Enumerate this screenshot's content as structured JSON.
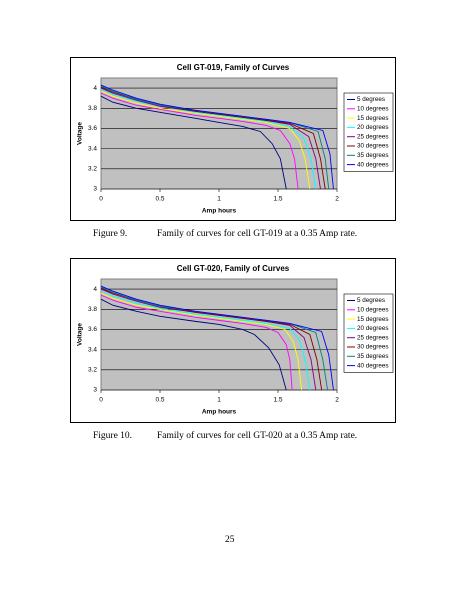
{
  "chart_data": [
    {
      "type": "line",
      "title": "Cell GT-019, Family of Curves",
      "xlabel": "Amp hours",
      "ylabel": "Voltage",
      "xlim": [
        0,
        2
      ],
      "xticks": [
        0,
        0.5,
        1,
        1.5,
        2
      ],
      "ylim": [
        3,
        4.1
      ],
      "yticks": [
        3,
        3.2,
        3.4,
        3.6,
        3.8,
        4
      ],
      "grid": true,
      "legend": "right",
      "series": [
        {
          "name": "5 degrees",
          "color": "#000080",
          "x": [
            0,
            0.1,
            0.3,
            0.5,
            0.8,
            1.0,
            1.2,
            1.35,
            1.45,
            1.52,
            1.57
          ],
          "values": [
            3.92,
            3.86,
            3.8,
            3.76,
            3.7,
            3.66,
            3.62,
            3.57,
            3.45,
            3.3,
            3.0
          ]
        },
        {
          "name": "10 degrees",
          "color": "#ff00ff",
          "x": [
            0,
            0.1,
            0.3,
            0.5,
            0.8,
            1.0,
            1.2,
            1.4,
            1.52,
            1.6,
            1.64,
            1.67
          ],
          "values": [
            3.95,
            3.9,
            3.83,
            3.79,
            3.73,
            3.7,
            3.67,
            3.63,
            3.58,
            3.45,
            3.3,
            3.0
          ]
        },
        {
          "name": "15 degrees",
          "color": "#ffff00",
          "x": [
            0,
            0.1,
            0.3,
            0.5,
            0.8,
            1.0,
            1.2,
            1.4,
            1.6,
            1.68,
            1.73,
            1.77
          ],
          "values": [
            3.97,
            3.92,
            3.85,
            3.8,
            3.75,
            3.72,
            3.69,
            3.66,
            3.6,
            3.48,
            3.3,
            3.0
          ]
        },
        {
          "name": "20 degrees",
          "color": "#00ffff",
          "x": [
            0,
            0.1,
            0.3,
            0.5,
            0.8,
            1.0,
            1.2,
            1.4,
            1.6,
            1.72,
            1.78,
            1.82
          ],
          "values": [
            3.99,
            3.94,
            3.87,
            3.82,
            3.76,
            3.73,
            3.7,
            3.67,
            3.62,
            3.5,
            3.3,
            3.0
          ]
        },
        {
          "name": "25 degrees",
          "color": "#800080",
          "x": [
            0,
            0.1,
            0.3,
            0.5,
            0.8,
            1.0,
            1.2,
            1.4,
            1.6,
            1.76,
            1.82,
            1.86
          ],
          "values": [
            4.0,
            3.95,
            3.88,
            3.82,
            3.77,
            3.74,
            3.71,
            3.68,
            3.64,
            3.52,
            3.3,
            3.0
          ]
        },
        {
          "name": "30 degrees",
          "color": "#800000",
          "x": [
            0,
            0.1,
            0.3,
            0.5,
            0.8,
            1.0,
            1.2,
            1.4,
            1.6,
            1.8,
            1.86,
            1.9
          ],
          "values": [
            4.01,
            3.96,
            3.89,
            3.83,
            3.77,
            3.74,
            3.71,
            3.68,
            3.65,
            3.55,
            3.3,
            3.0
          ]
        },
        {
          "name": "35 degrees",
          "color": "#008080",
          "x": [
            0,
            0.1,
            0.3,
            0.5,
            0.8,
            1.0,
            1.2,
            1.4,
            1.6,
            1.84,
            1.9,
            1.93
          ],
          "values": [
            4.02,
            3.97,
            3.89,
            3.83,
            3.78,
            3.75,
            3.72,
            3.69,
            3.66,
            3.57,
            3.3,
            3.0
          ]
        },
        {
          "name": "40 degrees",
          "color": "#0000ff",
          "x": [
            0,
            0.1,
            0.3,
            0.5,
            0.8,
            1.0,
            1.2,
            1.4,
            1.6,
            1.88,
            1.94,
            1.97
          ],
          "values": [
            4.03,
            3.98,
            3.9,
            3.84,
            3.78,
            3.75,
            3.72,
            3.69,
            3.66,
            3.58,
            3.35,
            3.0
          ]
        }
      ]
    },
    {
      "type": "line",
      "title": "Cell GT-020, Family of Curves",
      "xlabel": "Amp hours",
      "ylabel": "Voltage",
      "xlim": [
        0,
        2
      ],
      "xticks": [
        0,
        0.5,
        1,
        1.5,
        2
      ],
      "ylim": [
        3,
        4.1
      ],
      "yticks": [
        3,
        3.2,
        3.4,
        3.6,
        3.8,
        4
      ],
      "grid": true,
      "legend": "right",
      "series": [
        {
          "name": "5 degrees",
          "color": "#000080",
          "x": [
            0,
            0.1,
            0.3,
            0.5,
            0.8,
            1.0,
            1.2,
            1.3,
            1.42,
            1.51,
            1.57
          ],
          "values": [
            3.9,
            3.84,
            3.78,
            3.73,
            3.68,
            3.65,
            3.6,
            3.55,
            3.42,
            3.25,
            3.0
          ]
        },
        {
          "name": "10 degrees",
          "color": "#ff00ff",
          "x": [
            0,
            0.1,
            0.3,
            0.5,
            0.8,
            1.0,
            1.2,
            1.4,
            1.5,
            1.57,
            1.6,
            1.62
          ],
          "values": [
            3.94,
            3.89,
            3.82,
            3.78,
            3.72,
            3.69,
            3.66,
            3.62,
            3.57,
            3.45,
            3.3,
            3.0
          ]
        },
        {
          "name": "15 degrees",
          "color": "#ffff00",
          "x": [
            0,
            0.1,
            0.3,
            0.5,
            0.8,
            1.0,
            1.2,
            1.4,
            1.56,
            1.63,
            1.67,
            1.7
          ],
          "values": [
            3.96,
            3.91,
            3.84,
            3.8,
            3.74,
            3.71,
            3.68,
            3.65,
            3.6,
            3.48,
            3.3,
            3.0
          ]
        },
        {
          "name": "20 degrees",
          "color": "#00ffff",
          "x": [
            0,
            0.1,
            0.3,
            0.5,
            0.8,
            1.0,
            1.2,
            1.4,
            1.6,
            1.68,
            1.73,
            1.77
          ],
          "values": [
            3.98,
            3.93,
            3.86,
            3.81,
            3.75,
            3.72,
            3.69,
            3.66,
            3.61,
            3.5,
            3.3,
            3.0
          ]
        },
        {
          "name": "25 degrees",
          "color": "#800080",
          "x": [
            0,
            0.1,
            0.3,
            0.5,
            0.8,
            1.0,
            1.2,
            1.4,
            1.6,
            1.72,
            1.78,
            1.82
          ],
          "values": [
            4.0,
            3.95,
            3.88,
            3.82,
            3.77,
            3.74,
            3.71,
            3.68,
            3.64,
            3.52,
            3.3,
            3.0
          ]
        },
        {
          "name": "30 degrees",
          "color": "#800000",
          "x": [
            0,
            0.1,
            0.3,
            0.5,
            0.8,
            1.0,
            1.2,
            1.4,
            1.6,
            1.77,
            1.83,
            1.87
          ],
          "values": [
            4.01,
            3.96,
            3.89,
            3.83,
            3.77,
            3.74,
            3.71,
            3.68,
            3.65,
            3.55,
            3.3,
            3.0
          ]
        },
        {
          "name": "35 degrees",
          "color": "#008080",
          "x": [
            0,
            0.1,
            0.3,
            0.5,
            0.8,
            1.0,
            1.2,
            1.4,
            1.6,
            1.82,
            1.88,
            1.92
          ],
          "values": [
            4.02,
            3.97,
            3.89,
            3.83,
            3.78,
            3.75,
            3.72,
            3.69,
            3.66,
            3.57,
            3.3,
            3.0
          ]
        },
        {
          "name": "40 degrees",
          "color": "#0000ff",
          "x": [
            0,
            0.1,
            0.3,
            0.5,
            0.8,
            1.0,
            1.2,
            1.4,
            1.6,
            1.87,
            1.93,
            1.97
          ],
          "values": [
            4.03,
            3.98,
            3.9,
            3.84,
            3.78,
            3.75,
            3.72,
            3.69,
            3.66,
            3.58,
            3.35,
            3.0
          ]
        }
      ]
    }
  ],
  "captions": [
    {
      "label": "Figure 9.",
      "text": "Family of curves for cell GT-019 at a 0.35 Amp rate."
    },
    {
      "label": "Figure 10.",
      "text": "Family of curves for cell GT-020 at a 0.35 Amp rate."
    }
  ],
  "page_number": "25"
}
